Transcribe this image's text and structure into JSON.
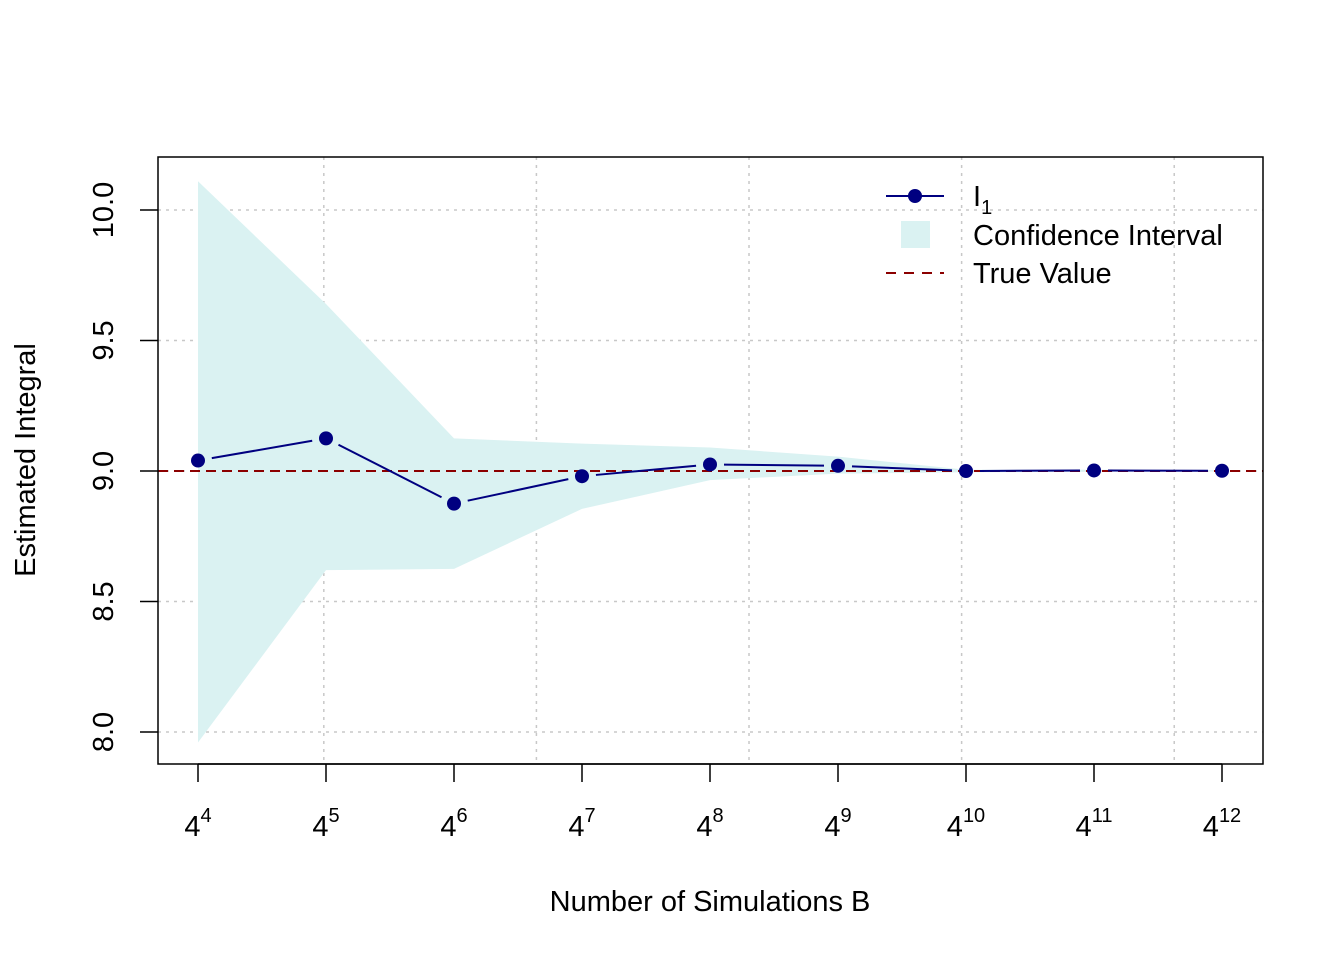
{
  "chart_data": {
    "type": "line",
    "title": "",
    "xlabel": "Number of Simulations B",
    "ylabel": "Estimated Integral",
    "x_base": "4",
    "x_exponents": [
      "4",
      "5",
      "6",
      "7",
      "8",
      "9",
      "10",
      "11",
      "12"
    ],
    "x": [
      256,
      1024,
      4096,
      16384,
      65536,
      262144,
      1048576,
      4194304,
      16777216
    ],
    "x_scale": "log",
    "series": [
      {
        "name": "I",
        "name_subscript": "1",
        "values": [
          9.04,
          9.125,
          8.875,
          8.98,
          9.025,
          9.02,
          9.0,
          9.002,
          9.001
        ],
        "color": "#000080"
      }
    ],
    "confidence_interval": {
      "name": "Confidence Interval",
      "lower": [
        7.96,
        8.62,
        8.625,
        8.855,
        8.965,
        8.99,
        8.995,
        8.997,
        8.998
      ],
      "upper": [
        10.11,
        9.64,
        9.125,
        9.105,
        9.09,
        9.055,
        9.005,
        9.005,
        9.003
      ],
      "color": "#daf2f2"
    },
    "reference_line": {
      "name": "True Value",
      "value": 9.0,
      "color": "#8b0000",
      "style": "dashed"
    },
    "y_ticks": [
      "8.0",
      "8.5",
      "9.0",
      "9.5",
      "10.0"
    ],
    "y_tick_values": [
      8.0,
      8.5,
      9.0,
      9.5,
      10.0
    ],
    "ylim": [
      7.88,
      10.2
    ],
    "grid": true,
    "legend_position": "top-right"
  }
}
